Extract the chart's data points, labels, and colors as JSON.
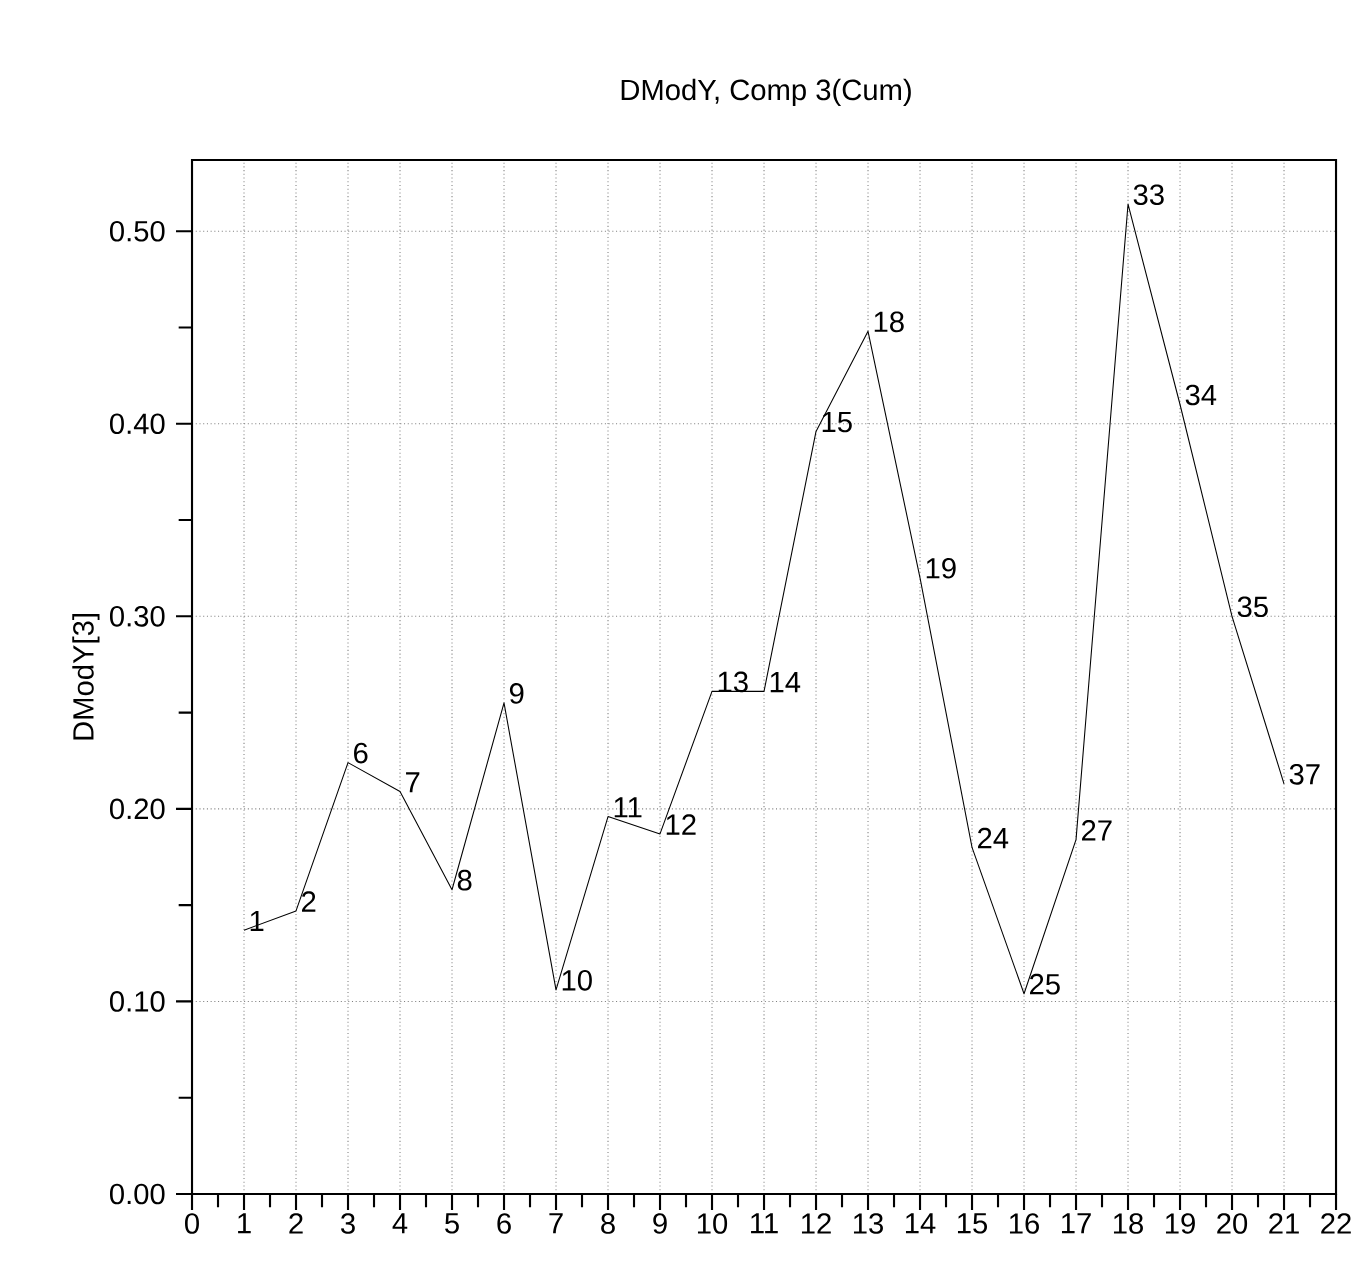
{
  "chart_data": {
    "type": "line",
    "title": "DModY, Comp 3(Cum)",
    "ylabel": "DModY[3]",
    "x": [
      1,
      2,
      3,
      4,
      5,
      6,
      7,
      8,
      9,
      10,
      11,
      12,
      13,
      14,
      15,
      16,
      17,
      18,
      19,
      20,
      21
    ],
    "series": [
      {
        "color": "#000000",
        "values": [
          0.137,
          0.147,
          0.224,
          0.209,
          0.158,
          0.255,
          0.106,
          0.196,
          0.187,
          0.261,
          0.261,
          0.396,
          0.448,
          0.32,
          0.18,
          0.104,
          0.184,
          0.514,
          0.41,
          0.3,
          0.213
        ]
      }
    ],
    "xlim": [
      0,
      22
    ],
    "ylim": [
      0,
      0.537
    ],
    "xticks": [
      0,
      {
        "value": 0.5,
        "label": null
      },
      1,
      {
        "value": 1.5,
        "label": null
      },
      2,
      {
        "value": 2.5,
        "label": null
      },
      3,
      {
        "value": 3.5,
        "label": null
      },
      4,
      {
        "value": 4.5,
        "label": null
      },
      5,
      {
        "value": 5.5,
        "label": null
      },
      6,
      {
        "value": 6.5,
        "label": null
      },
      7,
      {
        "value": 7.5,
        "label": null
      },
      8,
      {
        "value": 8.5,
        "label": null
      },
      9,
      {
        "value": 9.5,
        "label": null
      },
      10,
      {
        "value": 10.5,
        "label": null
      },
      11,
      {
        "value": 11.5,
        "label": null
      },
      12,
      {
        "value": 12.5,
        "label": null
      },
      13,
      {
        "value": 13.5,
        "label": null
      },
      14,
      {
        "value": 14.5,
        "label": null
      },
      15,
      {
        "value": 15.5,
        "label": null
      },
      16,
      {
        "value": 16.5,
        "label": null
      },
      17,
      {
        "value": 17.5,
        "label": null
      },
      18,
      {
        "value": 18.5,
        "label": null
      },
      19,
      {
        "value": 19.5,
        "label": null
      },
      20,
      {
        "value": 20.5,
        "label": null
      },
      21,
      {
        "value": 21.5,
        "label": null
      },
      22
    ],
    "yticks": [
      {
        "value": 0,
        "label": "0.00"
      },
      {
        "value": 0.05,
        "label": null
      },
      {
        "value": 0.1,
        "label": "0.10"
      },
      {
        "value": 0.15,
        "label": null
      },
      {
        "value": 0.2,
        "label": "0.20"
      },
      {
        "value": 0.25,
        "label": null
      },
      {
        "value": 0.3,
        "label": "0.30"
      },
      {
        "value": 0.35,
        "label": null
      },
      {
        "value": 0.4,
        "label": "0.40"
      },
      {
        "value": 0.45,
        "label": null
      },
      {
        "value": 0.5,
        "label": "0.50"
      }
    ],
    "grid": true,
    "line_style": "solid",
    "marker": "none",
    "annotations": [
      {
        "text": "1",
        "x": 1,
        "y": 0.137
      },
      {
        "text": "2",
        "x": 2,
        "y": 0.147
      },
      {
        "text": "6",
        "x": 3,
        "y": 0.224
      },
      {
        "text": "7",
        "x": 4,
        "y": 0.209
      },
      {
        "text": "8",
        "x": 5,
        "y": 0.158
      },
      {
        "text": "9",
        "x": 6,
        "y": 0.255
      },
      {
        "text": "10",
        "x": 7,
        "y": 0.106
      },
      {
        "text": "11",
        "x": 8,
        "y": 0.196
      },
      {
        "text": "12",
        "x": 9,
        "y": 0.187
      },
      {
        "text": "13",
        "x": 10,
        "y": 0.261
      },
      {
        "text": "14",
        "x": 11,
        "y": 0.261
      },
      {
        "text": "15",
        "x": 12,
        "y": 0.396
      },
      {
        "text": "18",
        "x": 13,
        "y": 0.448
      },
      {
        "text": "19",
        "x": 14,
        "y": 0.32
      },
      {
        "text": "24",
        "x": 15,
        "y": 0.18
      },
      {
        "text": "25",
        "x": 16,
        "y": 0.104
      },
      {
        "text": "27",
        "x": 17,
        "y": 0.184
      },
      {
        "text": "33",
        "x": 18,
        "y": 0.514
      },
      {
        "text": "34",
        "x": 19,
        "y": 0.41
      },
      {
        "text": "35",
        "x": 20,
        "y": 0.3
      },
      {
        "text": "37",
        "x": 21,
        "y": 0.213
      }
    ]
  }
}
